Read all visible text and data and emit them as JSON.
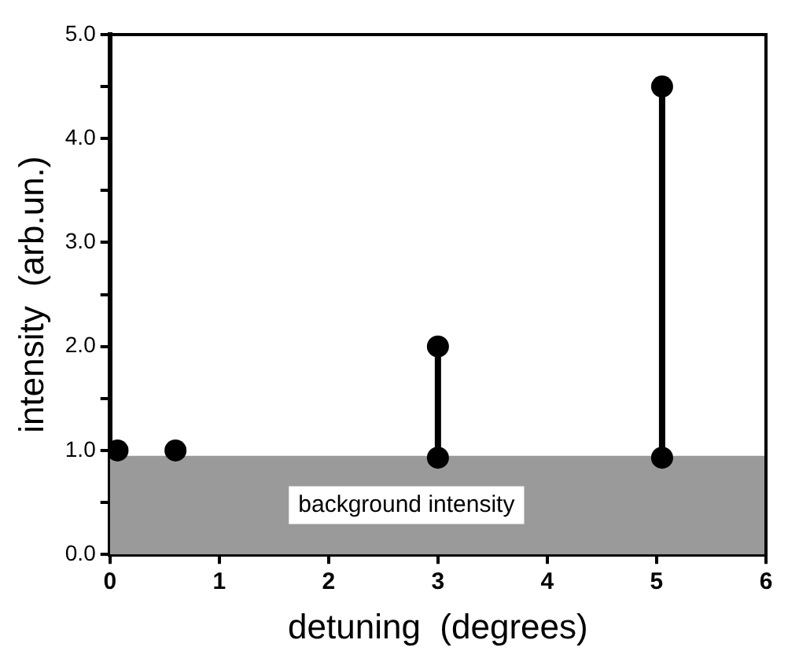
{
  "chart_data": {
    "type": "line",
    "xlabel": "detuning  (degrees)",
    "ylabel": "intensity  (arb.un.)",
    "xlim": [
      0,
      6
    ],
    "xticks": [
      0,
      1,
      2,
      3,
      4,
      5,
      6
    ],
    "ylim": [
      0,
      5
    ],
    "yticks": [
      {
        "value": 0,
        "label": "0.0"
      },
      {
        "value": 0.5,
        "label": null
      },
      {
        "value": 1,
        "label": "1.0"
      },
      {
        "value": 1.5,
        "label": null
      },
      {
        "value": 2,
        "label": "2.0"
      },
      {
        "value": 2.5,
        "label": null
      },
      {
        "value": 3,
        "label": "3.0"
      },
      {
        "value": 3.5,
        "label": null
      },
      {
        "value": 4,
        "label": "4.0"
      },
      {
        "value": 4.5,
        "label": null
      },
      {
        "value": 5,
        "label": "5.0"
      }
    ],
    "grid": false,
    "legend": false,
    "marker": "circle",
    "line_style": "solid",
    "bands": [
      {
        "axis": "y",
        "from": 0,
        "to": 0.95,
        "label": "background intensity",
        "color": "#9a9a9a"
      }
    ],
    "series": [
      {
        "type": "scatter",
        "color": "#000000",
        "x": [
          0.07,
          0.6
        ],
        "values": [
          1.0,
          1.0
        ]
      },
      {
        "type": "line",
        "color": "#000000",
        "x": [
          3,
          3
        ],
        "values": [
          0.93,
          2.0
        ]
      },
      {
        "type": "line",
        "color": "#000000",
        "x": [
          5.05,
          5.05
        ],
        "values": [
          0.93,
          4.5
        ]
      }
    ]
  }
}
